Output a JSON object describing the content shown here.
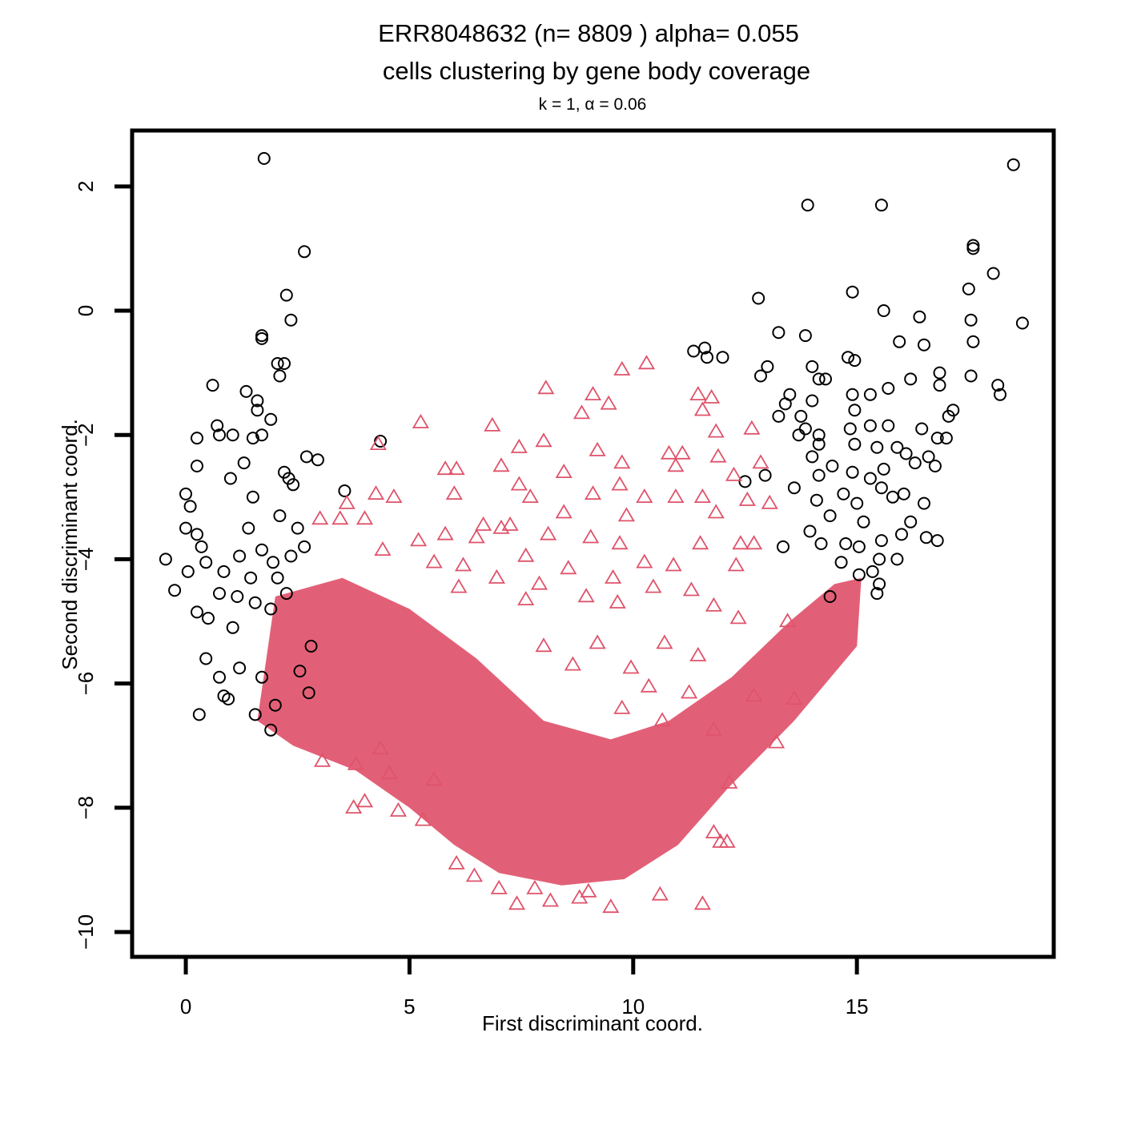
{
  "chart_data": {
    "type": "scatter",
    "title_line1": "ERR8048632 (n= 8809 ) alpha= 0.055",
    "title_line2": "cells clustering by gene body coverage",
    "subtitle": "k = 1, α = 0.06",
    "xlabel": "First discriminant coord.",
    "ylabel": "Second discriminant coord.",
    "xlim": [
      -1.2,
      19.4
    ],
    "ylim": [
      -10.4,
      2.9
    ],
    "xticks": [
      0,
      5,
      10,
      15
    ],
    "yticks": [
      -10,
      -8,
      -6,
      -4,
      -2,
      0,
      2
    ],
    "grid": false,
    "legend": "none",
    "series": [
      {
        "marker": "circle",
        "color": "#000000",
        "points": [
          [
            1.75,
            2.45
          ],
          [
            2.65,
            0.95
          ],
          [
            2.25,
            0.25
          ],
          [
            2.35,
            -0.15
          ],
          [
            1.7,
            -0.4
          ],
          [
            1.7,
            -0.45
          ],
          [
            2.05,
            -0.85
          ],
          [
            2.2,
            -0.85
          ],
          [
            2.1,
            -1.05
          ],
          [
            0.6,
            -1.2
          ],
          [
            1.35,
            -1.3
          ],
          [
            1.6,
            -1.45
          ],
          [
            1.6,
            -1.6
          ],
          [
            1.9,
            -1.75
          ],
          [
            0.7,
            -1.85
          ],
          [
            0.75,
            -2.0
          ],
          [
            1.05,
            -2.0
          ],
          [
            0.25,
            -2.05
          ],
          [
            1.5,
            -2.05
          ],
          [
            1.7,
            -2.0
          ],
          [
            2.7,
            -2.35
          ],
          [
            2.95,
            -2.4
          ],
          [
            1.3,
            -2.45
          ],
          [
            0.25,
            -2.5
          ],
          [
            2.2,
            -2.6
          ],
          [
            2.3,
            -2.7
          ],
          [
            2.4,
            -2.8
          ],
          [
            0.0,
            -2.95
          ],
          [
            0.1,
            -3.15
          ],
          [
            1.0,
            -2.7
          ],
          [
            1.5,
            -3.0
          ],
          [
            3.55,
            -2.9
          ],
          [
            4.35,
            -2.1
          ],
          [
            0.25,
            -3.6
          ],
          [
            1.4,
            -3.5
          ],
          [
            0.0,
            -3.5
          ],
          [
            0.35,
            -3.8
          ],
          [
            0.45,
            -4.05
          ],
          [
            -0.45,
            -4.0
          ],
          [
            0.05,
            -4.2
          ],
          [
            -0.25,
            -4.5
          ],
          [
            0.25,
            -4.85
          ],
          [
            0.5,
            -4.95
          ],
          [
            1.05,
            -5.1
          ],
          [
            0.45,
            -5.6
          ],
          [
            1.2,
            -5.75
          ],
          [
            1.7,
            -5.9
          ],
          [
            0.75,
            -5.9
          ],
          [
            0.85,
            -6.2
          ],
          [
            0.95,
            -6.25
          ],
          [
            0.3,
            -6.5
          ],
          [
            1.55,
            -6.5
          ],
          [
            1.9,
            -6.75
          ],
          [
            2.0,
            -6.35
          ],
          [
            2.75,
            -6.15
          ],
          [
            2.8,
            -5.4
          ],
          [
            2.55,
            -5.8
          ],
          [
            1.9,
            -4.8
          ],
          [
            2.25,
            -4.55
          ],
          [
            2.05,
            -4.3
          ],
          [
            1.95,
            -4.05
          ],
          [
            2.35,
            -3.95
          ],
          [
            1.7,
            -3.85
          ],
          [
            1.2,
            -3.95
          ],
          [
            1.45,
            -4.3
          ],
          [
            0.85,
            -4.2
          ],
          [
            1.15,
            -4.6
          ],
          [
            0.75,
            -4.55
          ],
          [
            1.55,
            -4.7
          ],
          [
            2.5,
            -3.5
          ],
          [
            2.65,
            -3.8
          ],
          [
            2.1,
            -3.3
          ],
          [
            13.9,
            1.7
          ],
          [
            15.55,
            1.7
          ],
          [
            18.5,
            2.35
          ],
          [
            17.6,
            1.0
          ],
          [
            17.6,
            1.05
          ],
          [
            18.05,
            0.6
          ],
          [
            12.8,
            0.2
          ],
          [
            14.9,
            0.3
          ],
          [
            15.6,
            0.0
          ],
          [
            17.5,
            0.35
          ],
          [
            18.7,
            -0.2
          ],
          [
            17.55,
            -0.15
          ],
          [
            16.4,
            -0.1
          ],
          [
            13.25,
            -0.35
          ],
          [
            13.85,
            -0.4
          ],
          [
            15.95,
            -0.5
          ],
          [
            16.5,
            -0.55
          ],
          [
            17.6,
            -0.5
          ],
          [
            11.35,
            -0.65
          ],
          [
            11.6,
            -0.6
          ],
          [
            11.65,
            -0.75
          ],
          [
            12.0,
            -0.75
          ],
          [
            14.8,
            -0.75
          ],
          [
            14.95,
            -0.8
          ],
          [
            13.0,
            -0.9
          ],
          [
            14.0,
            -0.9
          ],
          [
            14.15,
            -1.1
          ],
          [
            14.3,
            -1.1
          ],
          [
            12.85,
            -1.05
          ],
          [
            16.2,
            -1.1
          ],
          [
            16.85,
            -1.0
          ],
          [
            17.55,
            -1.05
          ],
          [
            18.15,
            -1.2
          ],
          [
            18.2,
            -1.35
          ],
          [
            16.85,
            -1.2
          ],
          [
            15.7,
            -1.25
          ],
          [
            14.9,
            -1.35
          ],
          [
            15.3,
            -1.35
          ],
          [
            13.5,
            -1.35
          ],
          [
            13.4,
            -1.5
          ],
          [
            14.0,
            -1.45
          ],
          [
            14.95,
            -1.6
          ],
          [
            13.75,
            -1.7
          ],
          [
            13.25,
            -1.7
          ],
          [
            13.85,
            -1.9
          ],
          [
            14.15,
            -2.0
          ],
          [
            14.85,
            -1.9
          ],
          [
            15.3,
            -1.85
          ],
          [
            15.7,
            -1.85
          ],
          [
            16.45,
            -1.9
          ],
          [
            17.05,
            -1.7
          ],
          [
            17.15,
            -1.6
          ],
          [
            16.8,
            -2.05
          ],
          [
            17.0,
            -2.05
          ],
          [
            13.7,
            -2.0
          ],
          [
            14.15,
            -2.15
          ],
          [
            14.95,
            -2.15
          ],
          [
            15.45,
            -2.2
          ],
          [
            15.9,
            -2.2
          ],
          [
            16.1,
            -2.3
          ],
          [
            16.6,
            -2.35
          ],
          [
            14.0,
            -2.35
          ],
          [
            15.6,
            -2.55
          ],
          [
            16.3,
            -2.45
          ],
          [
            16.75,
            -2.5
          ],
          [
            12.95,
            -2.65
          ],
          [
            12.5,
            -2.75
          ],
          [
            14.15,
            -2.65
          ],
          [
            14.45,
            -2.5
          ],
          [
            14.9,
            -2.6
          ],
          [
            15.3,
            -2.7
          ],
          [
            15.55,
            -2.85
          ],
          [
            16.05,
            -2.95
          ],
          [
            16.5,
            -3.1
          ],
          [
            15.0,
            -3.1
          ],
          [
            14.4,
            -3.3
          ],
          [
            15.15,
            -3.4
          ],
          [
            16.2,
            -3.4
          ],
          [
            16.0,
            -3.6
          ],
          [
            15.55,
            -3.7
          ],
          [
            14.75,
            -3.75
          ],
          [
            15.05,
            -3.8
          ],
          [
            15.5,
            -4.0
          ],
          [
            15.9,
            -4.0
          ],
          [
            15.35,
            -4.2
          ],
          [
            15.5,
            -4.4
          ],
          [
            15.45,
            -4.55
          ],
          [
            13.35,
            -3.8
          ],
          [
            14.2,
            -3.75
          ],
          [
            16.55,
            -3.65
          ],
          [
            16.8,
            -3.7
          ],
          [
            14.7,
            -2.95
          ],
          [
            14.1,
            -3.05
          ],
          [
            13.6,
            -2.85
          ],
          [
            14.65,
            -4.05
          ],
          [
            15.05,
            -4.25
          ],
          [
            13.95,
            -3.55
          ],
          [
            14.4,
            -4.6
          ],
          [
            15.8,
            -3.0
          ]
        ]
      },
      {
        "marker": "triangle",
        "color": "#df536b",
        "points": [
          [
            9.75,
            -0.95
          ],
          [
            10.3,
            -0.85
          ],
          [
            8.05,
            -1.25
          ],
          [
            9.1,
            -1.35
          ],
          [
            9.45,
            -1.5
          ],
          [
            8.85,
            -1.65
          ],
          [
            11.45,
            -1.35
          ],
          [
            11.75,
            -1.4
          ],
          [
            11.55,
            -1.6
          ],
          [
            11.85,
            -1.95
          ],
          [
            12.65,
            -1.9
          ],
          [
            5.25,
            -1.8
          ],
          [
            6.85,
            -1.85
          ],
          [
            4.3,
            -2.15
          ],
          [
            8.0,
            -2.1
          ],
          [
            7.45,
            -2.2
          ],
          [
            9.2,
            -2.25
          ],
          [
            10.8,
            -2.3
          ],
          [
            11.1,
            -2.3
          ],
          [
            11.9,
            -2.35
          ],
          [
            9.75,
            -2.45
          ],
          [
            10.95,
            -2.5
          ],
          [
            12.85,
            -2.45
          ],
          [
            5.8,
            -2.55
          ],
          [
            6.05,
            -2.55
          ],
          [
            7.05,
            -2.5
          ],
          [
            8.45,
            -2.6
          ],
          [
            9.7,
            -2.8
          ],
          [
            12.25,
            -2.65
          ],
          [
            7.45,
            -2.8
          ],
          [
            4.25,
            -2.95
          ],
          [
            4.65,
            -3.0
          ],
          [
            6.0,
            -2.95
          ],
          [
            7.7,
            -3.0
          ],
          [
            9.1,
            -2.95
          ],
          [
            10.25,
            -3.0
          ],
          [
            10.95,
            -3.0
          ],
          [
            11.55,
            -3.0
          ],
          [
            12.55,
            -3.05
          ],
          [
            13.05,
            -3.1
          ],
          [
            3.6,
            -3.1
          ],
          [
            3.0,
            -3.35
          ],
          [
            3.45,
            -3.35
          ],
          [
            4.0,
            -3.35
          ],
          [
            8.45,
            -3.25
          ],
          [
            9.85,
            -3.3
          ],
          [
            11.85,
            -3.25
          ],
          [
            6.65,
            -3.45
          ],
          [
            7.05,
            -3.5
          ],
          [
            7.25,
            -3.45
          ],
          [
            5.8,
            -3.6
          ],
          [
            6.5,
            -3.65
          ],
          [
            5.2,
            -3.7
          ],
          [
            8.1,
            -3.6
          ],
          [
            9.05,
            -3.65
          ],
          [
            9.7,
            -3.75
          ],
          [
            11.5,
            -3.75
          ],
          [
            12.4,
            -3.75
          ],
          [
            12.7,
            -3.75
          ],
          [
            4.4,
            -3.85
          ],
          [
            7.6,
            -3.95
          ],
          [
            5.55,
            -4.05
          ],
          [
            6.2,
            -4.1
          ],
          [
            8.55,
            -4.15
          ],
          [
            10.25,
            -4.05
          ],
          [
            10.9,
            -4.1
          ],
          [
            12.3,
            -4.1
          ],
          [
            6.95,
            -4.3
          ],
          [
            7.9,
            -4.4
          ],
          [
            9.55,
            -4.3
          ],
          [
            10.45,
            -4.45
          ],
          [
            11.3,
            -4.5
          ],
          [
            6.1,
            -4.45
          ],
          [
            8.95,
            -4.6
          ],
          [
            7.6,
            -4.65
          ],
          [
            9.65,
            -4.7
          ],
          [
            11.8,
            -4.75
          ],
          [
            12.35,
            -4.95
          ],
          [
            13.45,
            -5.0
          ],
          [
            8.0,
            -5.4
          ],
          [
            9.2,
            -5.35
          ],
          [
            10.7,
            -5.35
          ],
          [
            11.45,
            -5.55
          ],
          [
            8.65,
            -5.7
          ],
          [
            9.95,
            -5.75
          ],
          [
            10.35,
            -6.05
          ],
          [
            11.25,
            -6.15
          ],
          [
            12.7,
            -6.2
          ],
          [
            13.6,
            -6.25
          ],
          [
            9.75,
            -6.4
          ],
          [
            10.65,
            -6.6
          ],
          [
            11.8,
            -6.75
          ],
          [
            13.2,
            -6.95
          ],
          [
            4.35,
            -7.05
          ],
          [
            3.05,
            -7.25
          ],
          [
            3.8,
            -7.3
          ],
          [
            4.55,
            -7.45
          ],
          [
            5.55,
            -7.55
          ],
          [
            12.15,
            -7.6
          ],
          [
            3.75,
            -8.0
          ],
          [
            4.0,
            -7.9
          ],
          [
            4.75,
            -8.05
          ],
          [
            5.3,
            -8.2
          ],
          [
            11.8,
            -8.4
          ],
          [
            11.95,
            -8.55
          ],
          [
            12.1,
            -8.55
          ],
          [
            6.05,
            -8.9
          ],
          [
            6.45,
            -9.1
          ],
          [
            7.0,
            -9.3
          ],
          [
            7.4,
            -9.55
          ],
          [
            8.15,
            -9.5
          ],
          [
            8.8,
            -9.45
          ],
          [
            9.5,
            -9.6
          ],
          [
            10.6,
            -9.4
          ],
          [
            11.55,
            -9.55
          ],
          [
            7.8,
            -9.3
          ],
          [
            9.0,
            -9.35
          ]
        ]
      }
    ]
  }
}
